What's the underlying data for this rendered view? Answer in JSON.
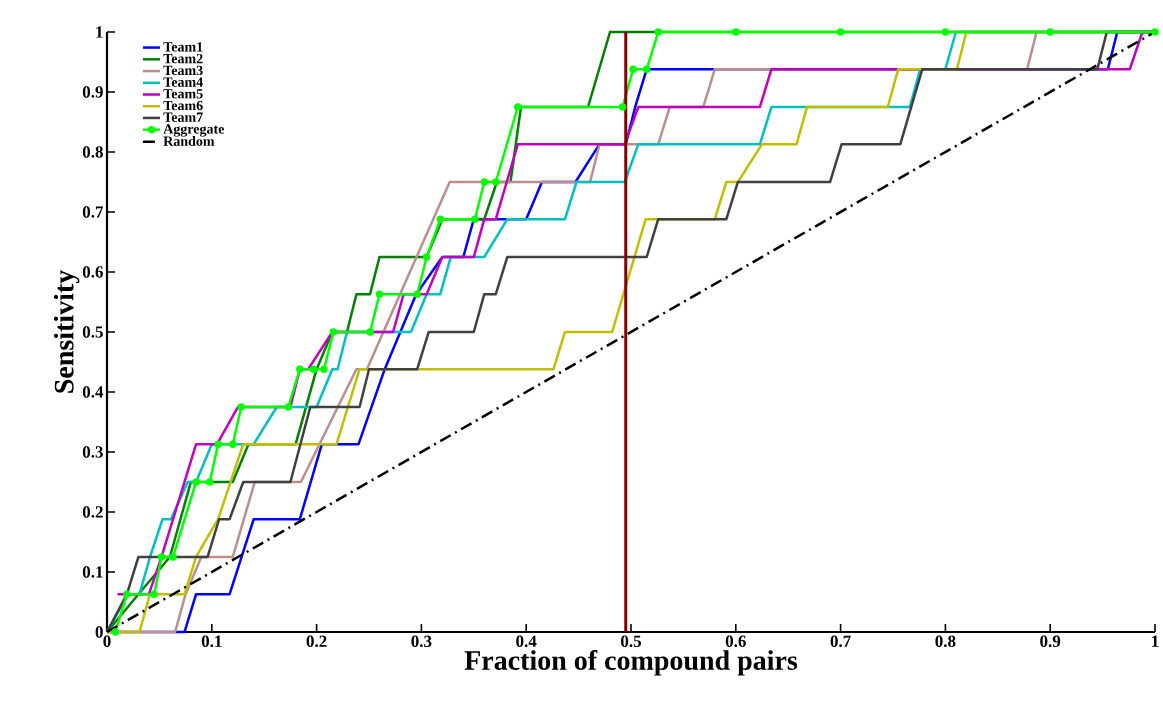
{
  "chart_data": {
    "type": "line",
    "xlabel": "Fraction of compound pairs",
    "ylabel": "Sensitivity",
    "xlim": [
      0,
      1
    ],
    "ylim": [
      0,
      1
    ],
    "xticks": [
      0,
      0.1,
      0.2,
      0.3,
      0.4,
      0.5,
      0.6,
      0.7,
      0.8,
      0.9,
      1
    ],
    "yticks": [
      0,
      0.1,
      0.2,
      0.3,
      0.4,
      0.5,
      0.6,
      0.7,
      0.8,
      0.9,
      1
    ],
    "legend": "top left",
    "ref_lines": [
      {
        "axis": "x",
        "value": 0.495,
        "color": "#800000"
      }
    ],
    "series": [
      {
        "name": "Team1",
        "color": "#0000ff",
        "x": [
          0,
          0.074,
          0.085,
          0.117,
          0.14,
          0.184,
          0.205,
          0.24,
          0.265,
          0.295,
          0.32,
          0.34,
          0.35,
          0.4,
          0.415,
          0.447,
          0.47,
          0.495,
          0.504,
          0.515,
          0.955,
          0.964,
          1
        ],
        "values": [
          0,
          0,
          0.063,
          0.063,
          0.188,
          0.188,
          0.313,
          0.313,
          0.438,
          0.563,
          0.625,
          0.625,
          0.688,
          0.688,
          0.75,
          0.75,
          0.813,
          0.813,
          0.875,
          0.938,
          0.938,
          1,
          1
        ]
      },
      {
        "name": "Team2",
        "color": "#007f00",
        "x": [
          0,
          0.03,
          0.06,
          0.08,
          0.12,
          0.135,
          0.18,
          0.2,
          0.215,
          0.229,
          0.238,
          0.251,
          0.26,
          0.305,
          0.32,
          0.36,
          0.372,
          0.385,
          0.395,
          0.459,
          0.48,
          1
        ],
        "values": [
          0,
          0.063,
          0.125,
          0.25,
          0.25,
          0.313,
          0.313,
          0.438,
          0.5,
          0.5,
          0.563,
          0.563,
          0.625,
          0.625,
          0.688,
          0.688,
          0.75,
          0.75,
          0.875,
          0.875,
          1,
          1
        ]
      },
      {
        "name": "Team3",
        "color": "#bc8f8f",
        "x": [
          0,
          0.065,
          0.075,
          0.09,
          0.12,
          0.141,
          0.185,
          0.238,
          0.248,
          0.327,
          0.461,
          0.47,
          0.526,
          0.537,
          0.569,
          0.58,
          0.878,
          0.887,
          1
        ],
        "values": [
          0,
          0,
          0.063,
          0.125,
          0.125,
          0.25,
          0.25,
          0.438,
          0.438,
          0.75,
          0.75,
          0.813,
          0.813,
          0.875,
          0.875,
          0.938,
          0.938,
          1,
          1
        ]
      },
      {
        "name": "Team4",
        "color": "#00bfbf",
        "x": [
          0,
          0.02,
          0.031,
          0.041,
          0.053,
          0.061,
          0.077,
          0.085,
          0.1,
          0.14,
          0.162,
          0.2,
          0.215,
          0.22,
          0.229,
          0.29,
          0.305,
          0.318,
          0.328,
          0.36,
          0.382,
          0.437,
          0.448,
          0.494,
          0.507,
          0.623,
          0.634,
          0.766,
          0.776,
          0.8,
          0.81,
          1
        ],
        "values": [
          0,
          0.063,
          0.063,
          0.125,
          0.188,
          0.188,
          0.25,
          0.25,
          0.313,
          0.313,
          0.375,
          0.375,
          0.438,
          0.438,
          0.5,
          0.5,
          0.563,
          0.563,
          0.625,
          0.625,
          0.688,
          0.688,
          0.75,
          0.75,
          0.813,
          0.813,
          0.875,
          0.875,
          0.938,
          0.938,
          1,
          1
        ]
      },
      {
        "name": "Team5",
        "color": "#bf00bf",
        "x": [
          0.01,
          0.04,
          0.052,
          0.085,
          0.105,
          0.125,
          0.175,
          0.184,
          0.192,
          0.215,
          0.273,
          0.283,
          0.305,
          0.32,
          0.35,
          0.36,
          0.371,
          0.392,
          0.494,
          0.507,
          0.623,
          0.634,
          0.976,
          0.988,
          1
        ],
        "values": [
          0.063,
          0.063,
          0.125,
          0.313,
          0.313,
          0.375,
          0.375,
          0.438,
          0.438,
          0.5,
          0.5,
          0.563,
          0.563,
          0.625,
          0.625,
          0.688,
          0.688,
          0.813,
          0.813,
          0.875,
          0.875,
          0.938,
          0.938,
          1,
          1
        ]
      },
      {
        "name": "Team6",
        "color": "#bfbf00",
        "x": [
          0,
          0.031,
          0.041,
          0.074,
          0.085,
          0.106,
          0.13,
          0.219,
          0.241,
          0.426,
          0.437,
          0.482,
          0.514,
          0.58,
          0.591,
          0.602,
          0.625,
          0.658,
          0.668,
          0.745,
          0.755,
          0.811,
          0.82,
          1
        ],
        "values": [
          0,
          0,
          0.063,
          0.063,
          0.125,
          0.188,
          0.313,
          0.313,
          0.438,
          0.438,
          0.5,
          0.5,
          0.688,
          0.688,
          0.75,
          0.75,
          0.813,
          0.813,
          0.875,
          0.875,
          0.938,
          0.938,
          1,
          1
        ]
      },
      {
        "name": "Team7",
        "color": "#404040",
        "x": [
          0,
          0.019,
          0.03,
          0.096,
          0.107,
          0.117,
          0.13,
          0.175,
          0.194,
          0.241,
          0.25,
          0.296,
          0.307,
          0.35,
          0.36,
          0.371,
          0.382,
          0.515,
          0.526,
          0.591,
          0.602,
          0.69,
          0.701,
          0.757,
          0.778,
          0.945,
          0.954,
          1
        ],
        "values": [
          0,
          0.063,
          0.125,
          0.125,
          0.188,
          0.188,
          0.25,
          0.25,
          0.375,
          0.375,
          0.438,
          0.438,
          0.5,
          0.5,
          0.563,
          0.563,
          0.625,
          0.625,
          0.688,
          0.688,
          0.75,
          0.75,
          0.813,
          0.813,
          0.938,
          0.938,
          1,
          1
        ]
      },
      {
        "name": "Aggregate",
        "color": "#00ff00",
        "marker": "circle",
        "x": [
          0.008,
          0.019,
          0.045,
          0.052,
          0.063,
          0.085,
          0.098,
          0.106,
          0.12,
          0.128,
          0.173,
          0.184,
          0.197,
          0.207,
          0.216,
          0.251,
          0.26,
          0.296,
          0.305,
          0.318,
          0.351,
          0.36,
          0.371,
          0.392,
          0.492,
          0.502,
          0.515,
          0.526,
          0.6,
          0.7,
          0.8,
          0.9,
          1
        ],
        "values": [
          0,
          0.063,
          0.063,
          0.125,
          0.125,
          0.25,
          0.25,
          0.313,
          0.313,
          0.375,
          0.375,
          0.438,
          0.438,
          0.438,
          0.5,
          0.5,
          0.563,
          0.563,
          0.625,
          0.688,
          0.688,
          0.75,
          0.75,
          0.875,
          0.875,
          0.938,
          0.938,
          1,
          1,
          1,
          1,
          1,
          1
        ]
      },
      {
        "name": "Random",
        "color": "#000000",
        "line_style": "dashdot",
        "x": [
          0,
          1
        ],
        "values": [
          0,
          1
        ]
      }
    ]
  }
}
